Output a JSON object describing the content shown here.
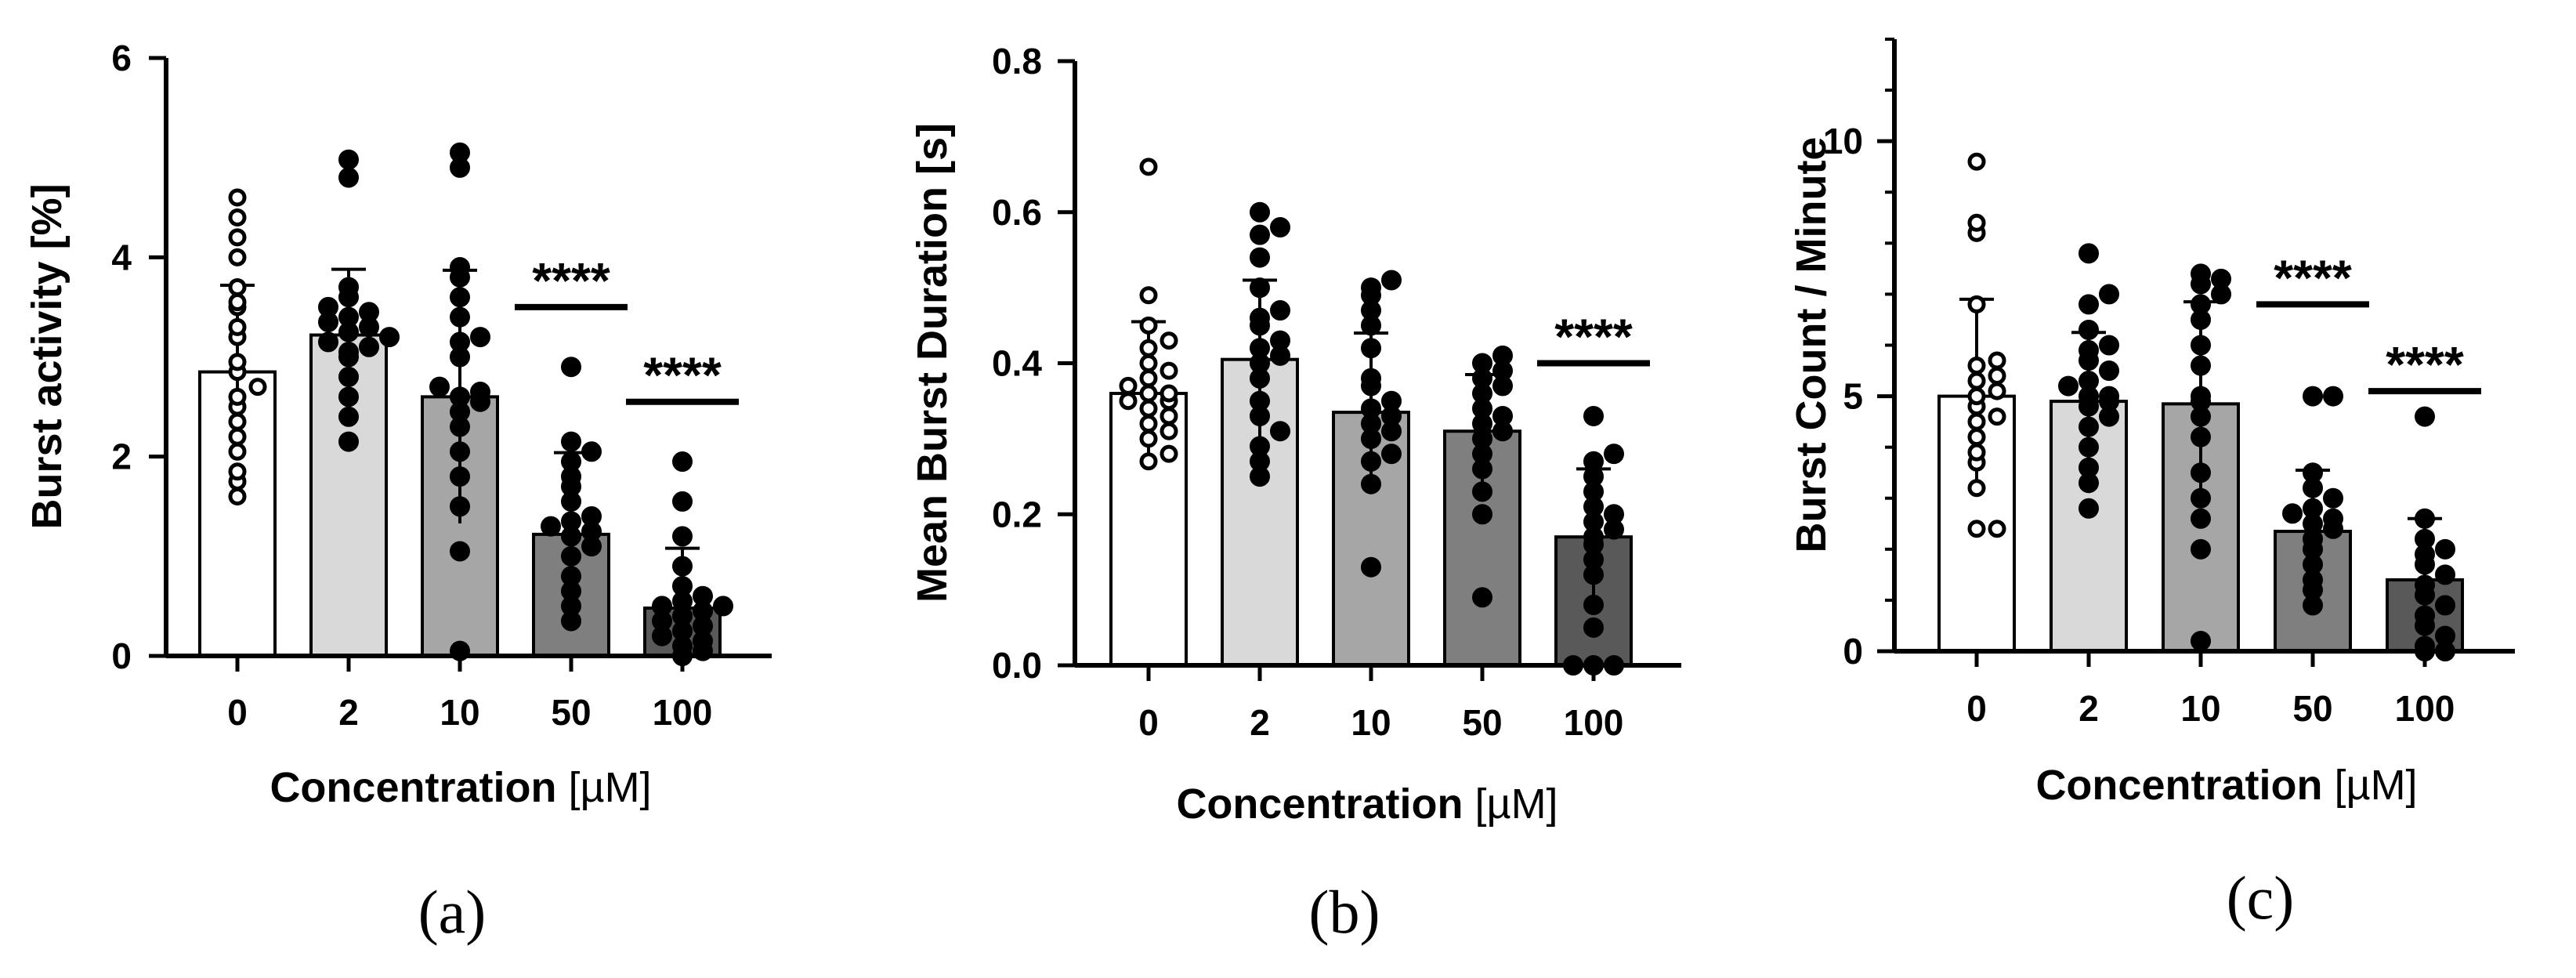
{
  "figure": {
    "panel_labels": [
      "(a)",
      "(b)",
      "(c)"
    ]
  },
  "chart_data": [
    {
      "type": "bar",
      "panel": "(a)",
      "title": "",
      "xlabel": "Concentration",
      "xlabel_unit": "[µM]",
      "ylabel": "Burst activity [%]",
      "categories": [
        "0",
        "2",
        "10",
        "50",
        "100"
      ],
      "ylim": [
        0,
        6
      ],
      "yticks": [
        0,
        2,
        4,
        6
      ],
      "ytick_labels": [
        "0",
        "2",
        "4",
        "6"
      ],
      "grid": false,
      "bar_colors": [
        "#ffffff",
        "#d9d9d9",
        "#a6a6a6",
        "#7f7f7f",
        "#595959"
      ],
      "values": [
        2.85,
        3.22,
        2.6,
        1.22,
        0.48
      ],
      "errors": [
        0.87,
        0.66,
        1.27,
        0.82,
        0.6
      ],
      "point_style": [
        "open",
        "filled",
        "filled",
        "filled",
        "filled"
      ],
      "points": [
        [
          1.6,
          1.75,
          1.85,
          2.05,
          2.2,
          2.35,
          2.5,
          2.6,
          2.7,
          2.85,
          2.95,
          3.2,
          3.3,
          3.5,
          3.55,
          3.7,
          4.0,
          4.2,
          4.4,
          4.6
        ],
        [
          2.15,
          2.4,
          2.6,
          2.8,
          3.0,
          3.05,
          3.1,
          3.15,
          3.2,
          3.25,
          3.3,
          3.35,
          3.4,
          3.45,
          3.5,
          3.6,
          3.7,
          4.8,
          4.98
        ],
        [
          0.05,
          1.05,
          1.5,
          1.8,
          2.05,
          2.3,
          2.45,
          2.55,
          2.6,
          2.65,
          2.7,
          3.0,
          3.15,
          3.2,
          3.4,
          3.6,
          3.8,
          3.9,
          4.9,
          5.05
        ],
        [
          0.35,
          0.5,
          0.65,
          0.8,
          1.0,
          1.1,
          1.2,
          1.25,
          1.3,
          1.35,
          1.4,
          1.55,
          1.7,
          1.8,
          1.95,
          2.05,
          2.15,
          2.9
        ],
        [
          0.0,
          0.05,
          0.1,
          0.15,
          0.2,
          0.25,
          0.3,
          0.35,
          0.4,
          0.45,
          0.5,
          0.5,
          0.55,
          0.6,
          0.7,
          0.9,
          1.2,
          1.55,
          1.95
        ]
      ],
      "annotations": [
        {
          "category": "50",
          "text": "****",
          "y": 3.5
        },
        {
          "category": "100",
          "text": "****",
          "y": 2.55
        }
      ]
    },
    {
      "type": "bar",
      "panel": "(b)",
      "title": "",
      "xlabel": "Concentration",
      "xlabel_unit": "[µM]",
      "ylabel": "Mean Burst Duration [s]",
      "categories": [
        "0",
        "2",
        "10",
        "50",
        "100"
      ],
      "ylim": [
        0,
        0.8
      ],
      "yticks": [
        0,
        0.2,
        0.4,
        0.6,
        0.8
      ],
      "ytick_labels": [
        "0.0",
        "0.2",
        "0.4",
        "0.6",
        "0.8"
      ],
      "grid": false,
      "bar_colors": [
        "#ffffff",
        "#d9d9d9",
        "#a6a6a6",
        "#7f7f7f",
        "#595959"
      ],
      "values": [
        0.36,
        0.405,
        0.335,
        0.31,
        0.17
      ],
      "errors": [
        0.095,
        0.105,
        0.105,
        0.075,
        0.09
      ],
      "point_style": [
        "open",
        "filled",
        "filled",
        "filled",
        "filled"
      ],
      "points": [
        [
          0.27,
          0.28,
          0.3,
          0.31,
          0.32,
          0.33,
          0.34,
          0.35,
          0.35,
          0.36,
          0.36,
          0.37,
          0.38,
          0.39,
          0.4,
          0.42,
          0.43,
          0.45,
          0.49,
          0.66
        ],
        [
          0.25,
          0.27,
          0.29,
          0.31,
          0.33,
          0.35,
          0.38,
          0.4,
          0.41,
          0.42,
          0.43,
          0.45,
          0.46,
          0.47,
          0.5,
          0.54,
          0.57,
          0.58,
          0.6
        ],
        [
          0.13,
          0.24,
          0.27,
          0.28,
          0.3,
          0.31,
          0.32,
          0.33,
          0.34,
          0.35,
          0.37,
          0.38,
          0.42,
          0.45,
          0.47,
          0.49,
          0.5,
          0.51
        ],
        [
          0.09,
          0.2,
          0.23,
          0.26,
          0.28,
          0.3,
          0.31,
          0.32,
          0.33,
          0.34,
          0.36,
          0.37,
          0.38,
          0.39,
          0.4,
          0.41
        ],
        [
          0.0,
          0.0,
          0.0,
          0.05,
          0.08,
          0.12,
          0.14,
          0.16,
          0.17,
          0.18,
          0.19,
          0.2,
          0.21,
          0.23,
          0.25,
          0.27,
          0.28,
          0.33
        ]
      ],
      "annotations": [
        {
          "category": "100",
          "text": "****",
          "y": 0.4
        }
      ]
    },
    {
      "type": "bar",
      "panel": "(c)",
      "title": "",
      "xlabel": "Concentration",
      "xlabel_unit": "[µM]",
      "ylabel": "Burst Count / Minute",
      "categories": [
        "0",
        "2",
        "10",
        "50",
        "100"
      ],
      "ylim": [
        0,
        12
      ],
      "yticks": [
        0,
        5,
        10
      ],
      "minor_yticks": [
        0,
        1,
        2,
        3,
        4,
        5,
        6,
        7,
        8,
        9,
        10,
        11,
        12
      ],
      "ytick_labels": [
        "0",
        "5",
        "10"
      ],
      "grid": false,
      "bar_colors": [
        "#ffffff",
        "#d9d9d9",
        "#a6a6a6",
        "#7f7f7f",
        "#595959"
      ],
      "values": [
        5.0,
        4.9,
        4.85,
        2.35,
        1.4
      ],
      "errors": [
        1.9,
        1.35,
        2.0,
        1.2,
        1.2
      ],
      "point_style": [
        "open",
        "filled",
        "filled",
        "filled",
        "filled"
      ],
      "points": [
        [
          2.4,
          2.4,
          3.2,
          3.7,
          3.9,
          4.2,
          4.5,
          4.6,
          4.8,
          5.0,
          5.1,
          5.3,
          5.4,
          5.6,
          5.7,
          6.8,
          8.2,
          8.4,
          9.6
        ],
        [
          2.8,
          3.3,
          3.6,
          4.0,
          4.4,
          4.6,
          4.8,
          4.9,
          5.0,
          5.0,
          5.2,
          5.3,
          5.5,
          5.7,
          5.9,
          6.0,
          6.3,
          6.8,
          7.0,
          7.8
        ],
        [
          0.2,
          2.0,
          2.6,
          3.0,
          3.5,
          4.2,
          4.6,
          4.9,
          5.0,
          5.6,
          6.0,
          6.5,
          6.8,
          7.0,
          7.2,
          7.3,
          7.4
        ],
        [
          0.9,
          1.2,
          1.4,
          1.7,
          2.0,
          2.2,
          2.4,
          2.5,
          2.6,
          2.7,
          2.8,
          3.0,
          3.2,
          3.5,
          5.0,
          5.0
        ],
        [
          0.0,
          0.0,
          0.1,
          0.3,
          0.5,
          0.7,
          0.9,
          1.1,
          1.3,
          1.5,
          1.7,
          1.9,
          2.0,
          2.2,
          2.6,
          4.6
        ]
      ],
      "annotations": [
        {
          "category": "50",
          "text": "****",
          "y": 6.8
        },
        {
          "category": "100",
          "text": "****",
          "y": 5.1
        }
      ]
    }
  ]
}
